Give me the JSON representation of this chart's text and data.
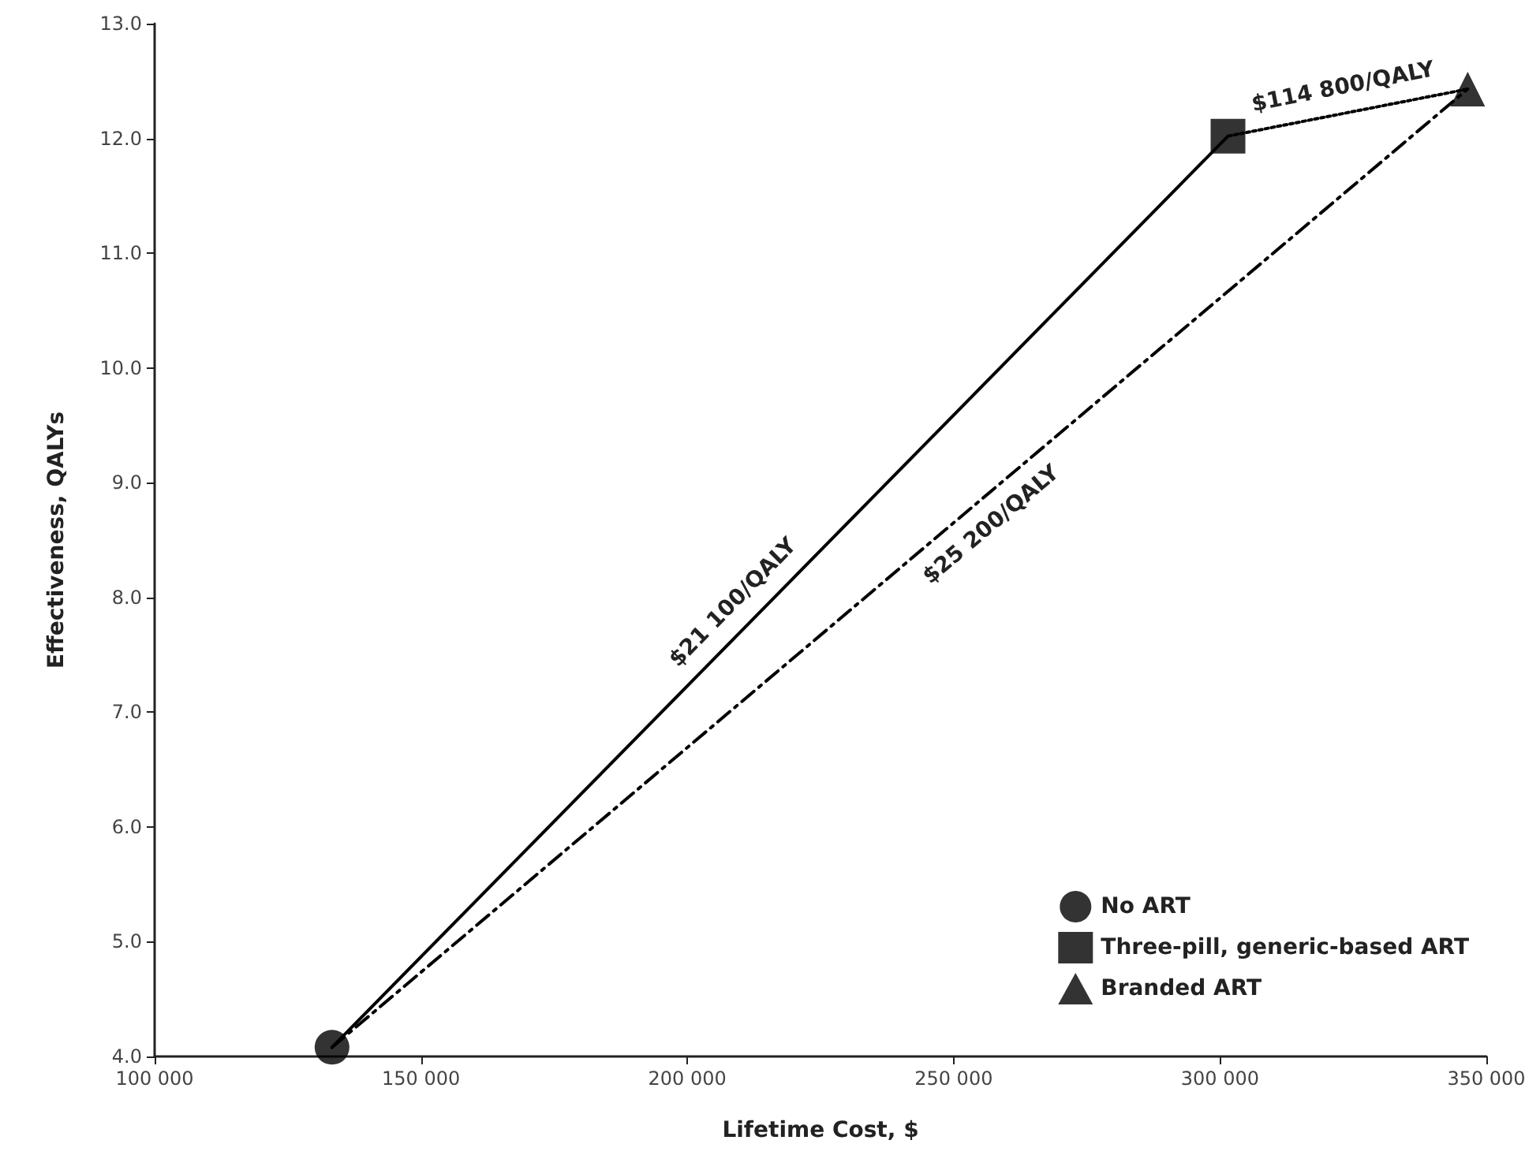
{
  "chart_data": {
    "type": "scatter",
    "xlabel": "Lifetime Cost, $",
    "ylabel": "Effectiveness, QALYs",
    "xlim": [
      100000,
      350000
    ],
    "xticks": [
      {
        "value": 100000,
        "label": "100 000"
      },
      {
        "value": 150000,
        "label": "150 000"
      },
      {
        "value": 200000,
        "label": "200 000"
      },
      {
        "value": 250000,
        "label": "250 000"
      },
      {
        "value": 300000,
        "label": "300 000"
      },
      {
        "value": 350000,
        "label": "350 000"
      }
    ],
    "ylim": [
      4,
      13
    ],
    "yticks": [
      {
        "value": 4,
        "label": "4.0"
      },
      {
        "value": 5,
        "label": "5.0"
      },
      {
        "value": 6,
        "label": "6.0"
      },
      {
        "value": 7,
        "label": "7.0"
      },
      {
        "value": 8,
        "label": "8.0"
      },
      {
        "value": 9,
        "label": "9.0"
      },
      {
        "value": 10,
        "label": "10.0"
      },
      {
        "value": 11,
        "label": "11.0"
      },
      {
        "value": 12,
        "label": "12.0"
      },
      {
        "value": 13,
        "label": "13.0"
      }
    ],
    "series": [
      {
        "type": "line",
        "color": "#000000",
        "line_style": "solid",
        "marker": "none",
        "x": [
          133300,
          301500
        ],
        "values": [
          4.08,
          12.02
        ]
      },
      {
        "type": "line",
        "color": "#000000",
        "line_style": "dashed",
        "marker": "none",
        "x": [
          133300,
          346500
        ],
        "values": [
          4.08,
          12.43
        ]
      },
      {
        "type": "line",
        "color": "#000000",
        "line_style": "dotted",
        "marker": "none",
        "x": [
          301500,
          346500
        ],
        "values": [
          12.02,
          12.43
        ]
      },
      {
        "name": "No ART",
        "color": "#000000",
        "marker": "circle",
        "x": [
          133300
        ],
        "values": [
          4.08
        ]
      },
      {
        "name": "Three-pill, generic-based ART",
        "color": "#000000",
        "marker": "square",
        "x": [
          301500
        ],
        "values": [
          12.02
        ]
      },
      {
        "name": "Branded ART",
        "color": "#000000",
        "marker": "triangle",
        "x": [
          346500
        ],
        "values": [
          12.43
        ]
      }
    ],
    "annotations": [
      {
        "text": "$21 100/QALY",
        "x": 212000,
        "y": 7.8
      },
      {
        "text": "$25 200/QALY",
        "x": 254000,
        "y": 8.8
      },
      {
        "text": "$114 800/QALY",
        "x": 324000,
        "y": 12.23
      }
    ],
    "legend": "bottom right",
    "grid": false
  }
}
